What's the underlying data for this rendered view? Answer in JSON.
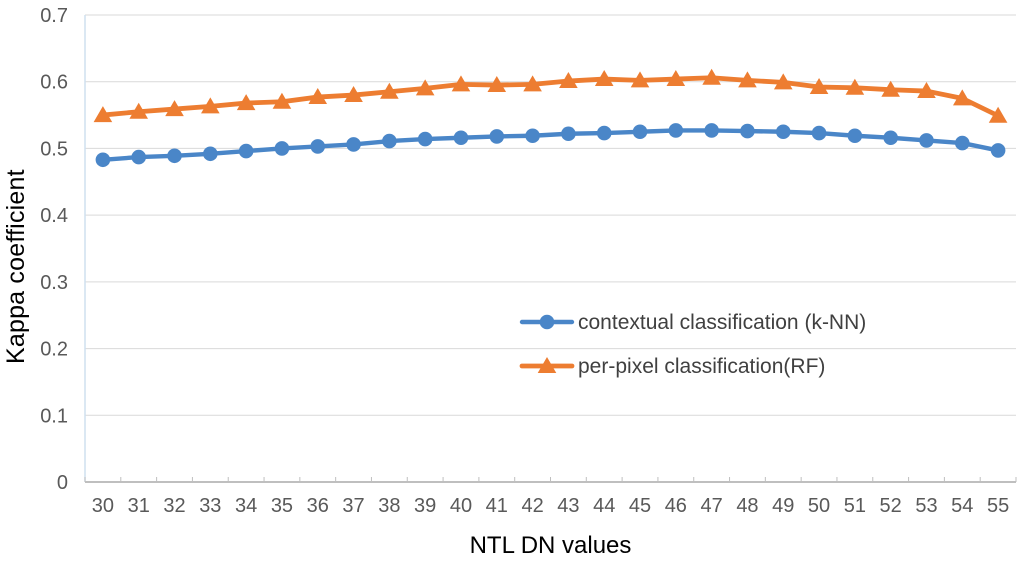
{
  "chart_data": {
    "type": "line",
    "title": "",
    "xlabel": "NTL DN values",
    "ylabel": "Kappa coefficient",
    "x_categories": [
      "30",
      "31",
      "32",
      "33",
      "34",
      "35",
      "36",
      "37",
      "38",
      "39",
      "40",
      "41",
      "42",
      "43",
      "44",
      "45",
      "46",
      "47",
      "48",
      "49",
      "50",
      "51",
      "52",
      "53",
      "54",
      "55"
    ],
    "ylim": [
      0,
      0.7
    ],
    "y_tick_values": [
      0,
      0.1,
      0.2,
      0.3,
      0.4,
      0.5,
      0.6,
      0.7
    ],
    "y_tick_labels": [
      "0",
      "0.1",
      "0.2",
      "0.3",
      "0.4",
      "0.5",
      "0.6",
      "0.7"
    ],
    "grid": true,
    "legend_position": "inside-center-right",
    "series": [
      {
        "name": "contextual classification (k-NN)",
        "marker": "circle",
        "color": "#4A86C8",
        "values": [
          0.483,
          0.487,
          0.489,
          0.492,
          0.496,
          0.5,
          0.503,
          0.506,
          0.511,
          0.514,
          0.516,
          0.518,
          0.519,
          0.522,
          0.523,
          0.525,
          0.527,
          0.527,
          0.526,
          0.525,
          0.523,
          0.519,
          0.516,
          0.512,
          0.508,
          0.497
        ]
      },
      {
        "name": "per-pixel classification(RF)",
        "marker": "triangle",
        "color": "#ED7D31",
        "values": [
          0.55,
          0.555,
          0.559,
          0.563,
          0.568,
          0.57,
          0.577,
          0.58,
          0.585,
          0.59,
          0.596,
          0.595,
          0.596,
          0.601,
          0.604,
          0.602,
          0.604,
          0.606,
          0.602,
          0.599,
          0.592,
          0.591,
          0.588,
          0.586,
          0.575,
          0.549
        ]
      }
    ]
  },
  "colors": {
    "gridline": "#D9D9D9",
    "axis_line": "#BFBFBF",
    "yaxis_line": "#CFE0EF",
    "axis_text": "#595959",
    "legend_text": "#404040",
    "axis_title": "#000000"
  }
}
